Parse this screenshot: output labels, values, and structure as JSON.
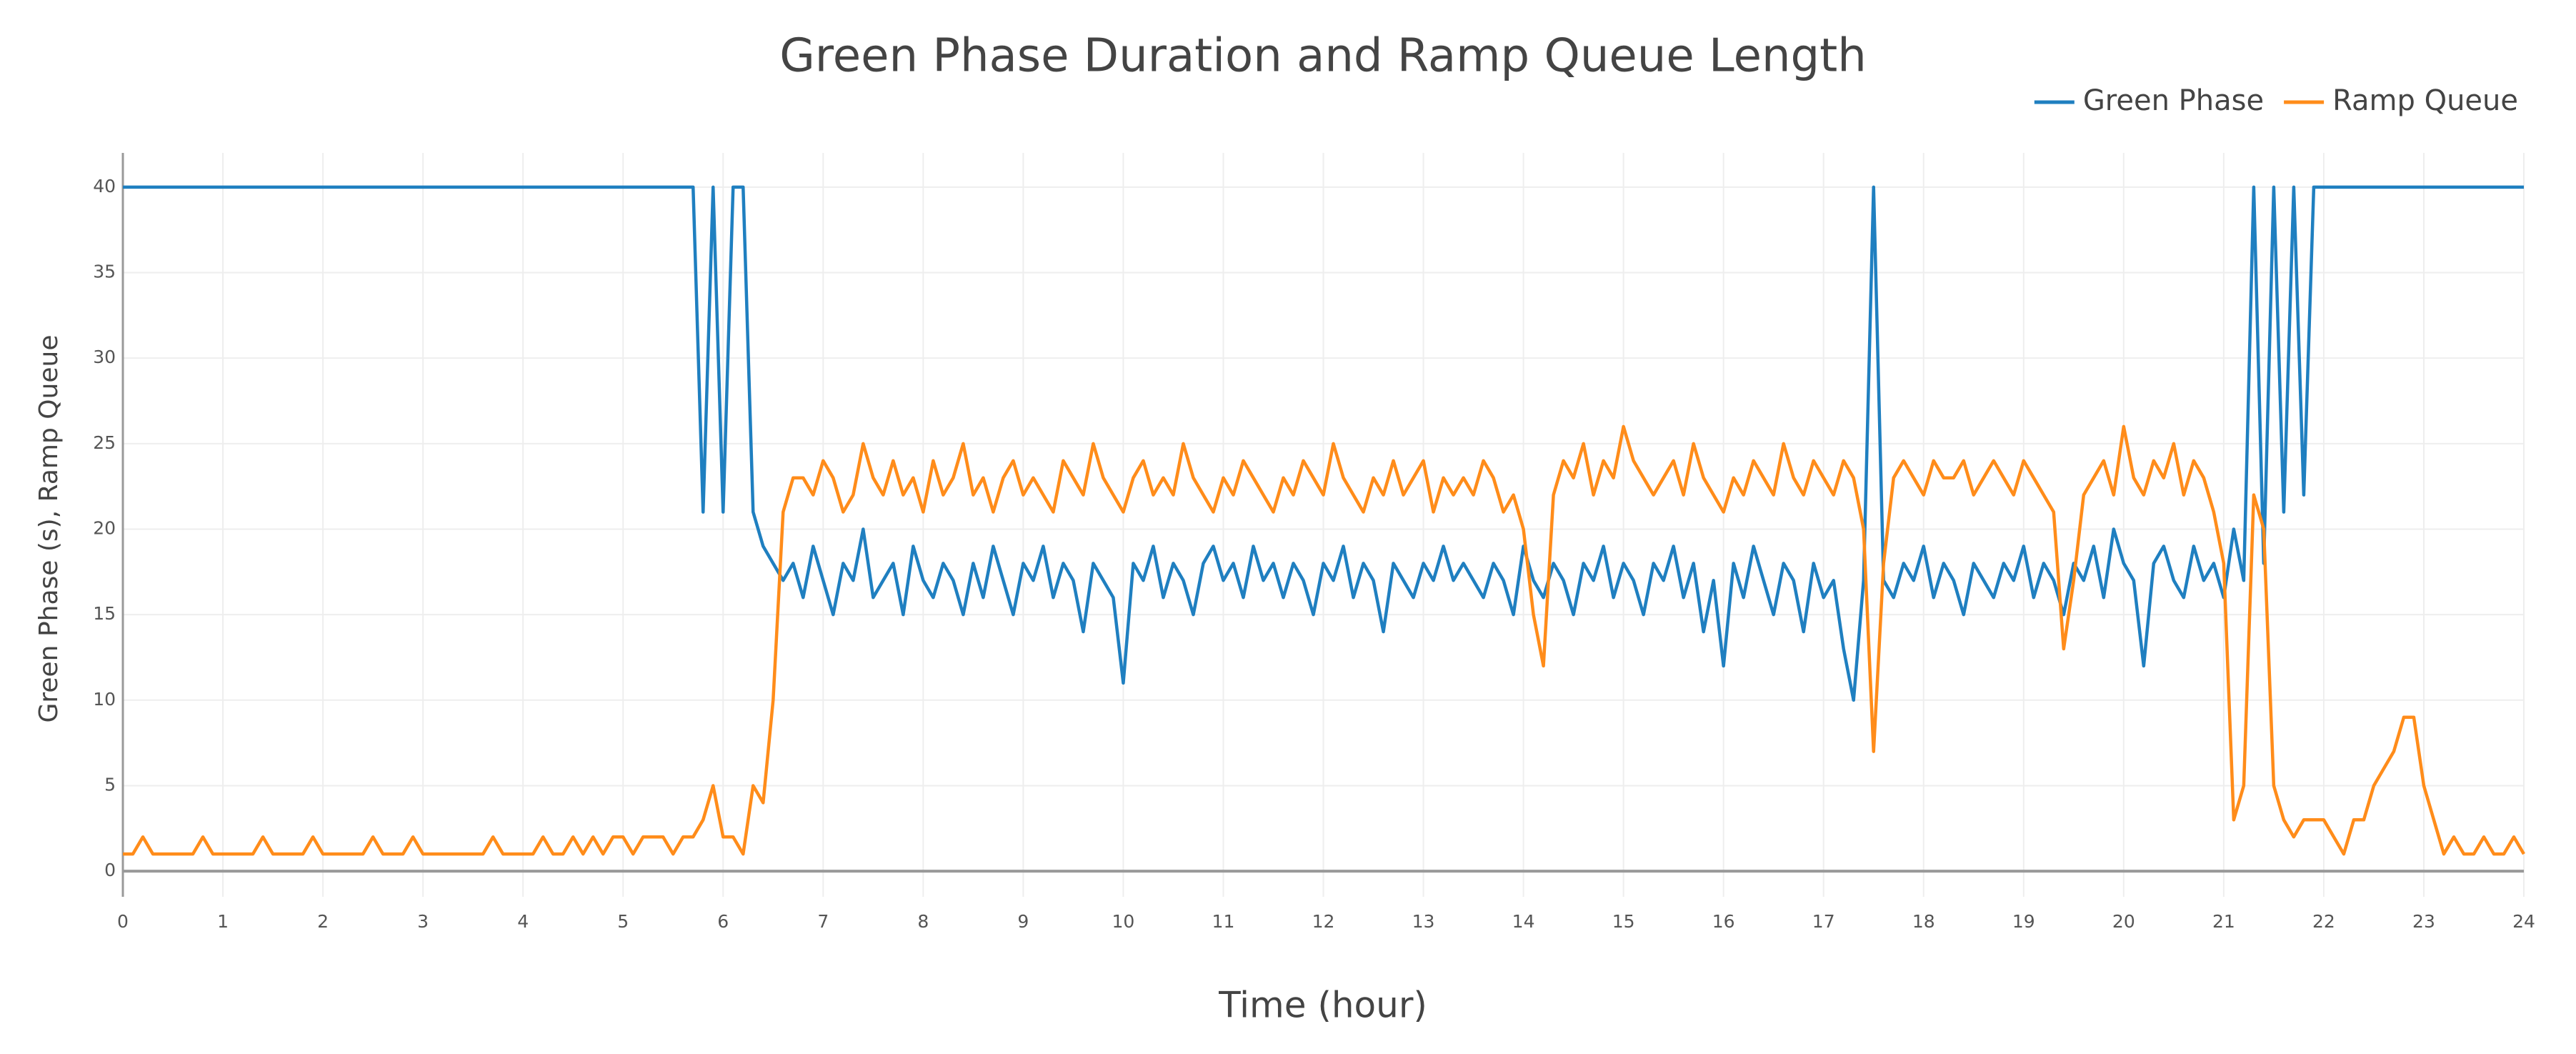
{
  "chart_data": {
    "type": "line",
    "title": "Green Phase Duration and Ramp Queue Length",
    "x_label": "Time (hour)",
    "y_label": "Green Phase (s), Ramp Queue",
    "xlim": [
      0,
      24
    ],
    "ylim": [
      -1.5,
      42
    ],
    "xticks": [
      0,
      1,
      2,
      3,
      4,
      5,
      6,
      7,
      8,
      9,
      10,
      11,
      12,
      13,
      14,
      15,
      16,
      17,
      18,
      19,
      20,
      21,
      22,
      23,
      24
    ],
    "yticks": [
      0,
      5,
      10,
      15,
      20,
      25,
      30,
      35,
      40
    ],
    "grid": true,
    "legend": "top-right",
    "x": [
      0,
      0.1,
      0.2,
      0.3,
      0.4,
      0.5,
      0.6,
      0.7,
      0.8,
      0.9,
      1,
      1.1,
      1.2,
      1.3,
      1.4,
      1.5,
      1.6,
      1.7,
      1.8,
      1.9,
      2,
      2.1,
      2.2,
      2.3,
      2.4,
      2.5,
      2.6,
      2.7,
      2.8,
      2.9,
      3,
      3.1,
      3.2,
      3.3,
      3.4,
      3.5,
      3.6,
      3.7,
      3.8,
      3.9,
      4,
      4.1,
      4.2,
      4.3,
      4.4,
      4.5,
      4.6,
      4.7,
      4.8,
      4.9,
      5,
      5.1,
      5.2,
      5.3,
      5.4,
      5.5,
      5.6,
      5.7,
      5.8,
      5.9,
      6,
      6.1,
      6.2,
      6.3,
      6.4,
      6.5,
      6.6,
      6.7,
      6.8,
      6.9,
      7,
      7.1,
      7.2,
      7.3,
      7.4,
      7.5,
      7.6,
      7.7,
      7.8,
      7.9,
      8,
      8.1,
      8.2,
      8.3,
      8.4,
      8.5,
      8.6,
      8.7,
      8.8,
      8.9,
      9,
      9.1,
      9.2,
      9.3,
      9.4,
      9.5,
      9.6,
      9.7,
      9.8,
      9.9,
      10,
      10.1,
      10.2,
      10.3,
      10.4,
      10.5,
      10.6,
      10.7,
      10.8,
      10.9,
      11,
      11.1,
      11.2,
      11.3,
      11.4,
      11.5,
      11.6,
      11.7,
      11.8,
      11.9,
      12,
      12.1,
      12.2,
      12.3,
      12.4,
      12.5,
      12.6,
      12.7,
      12.8,
      12.9,
      13,
      13.1,
      13.2,
      13.3,
      13.4,
      13.5,
      13.6,
      13.7,
      13.8,
      13.9,
      14,
      14.1,
      14.2,
      14.3,
      14.4,
      14.5,
      14.6,
      14.7,
      14.8,
      14.9,
      15,
      15.1,
      15.2,
      15.3,
      15.4,
      15.5,
      15.6,
      15.7,
      15.8,
      15.9,
      16,
      16.1,
      16.2,
      16.3,
      16.4,
      16.5,
      16.6,
      16.7,
      16.8,
      16.9,
      17,
      17.1,
      17.2,
      17.3,
      17.4,
      17.5,
      17.6,
      17.7,
      17.8,
      17.9,
      18,
      18.1,
      18.2,
      18.3,
      18.4,
      18.5,
      18.6,
      18.7,
      18.8,
      18.9,
      19,
      19.1,
      19.2,
      19.3,
      19.4,
      19.5,
      19.6,
      19.7,
      19.8,
      19.9,
      20,
      20.1,
      20.2,
      20.3,
      20.4,
      20.5,
      20.6,
      20.7,
      20.8,
      20.9,
      21,
      21.1,
      21.2,
      21.3,
      21.4,
      21.5,
      21.6,
      21.7,
      21.8,
      21.9,
      22,
      22.1,
      22.2,
      22.3,
      22.4,
      22.5,
      22.6,
      22.7,
      22.8,
      22.9,
      23,
      23.1,
      23.2,
      23.3,
      23.4,
      23.5,
      23.6,
      23.7,
      23.8,
      23.9,
      24
    ],
    "series": [
      {
        "name": "Green Phase",
        "color": "#1f7fc0",
        "values": [
          40,
          40,
          40,
          40,
          40,
          40,
          40,
          40,
          40,
          40,
          40,
          40,
          40,
          40,
          40,
          40,
          40,
          40,
          40,
          40,
          40,
          40,
          40,
          40,
          40,
          40,
          40,
          40,
          40,
          40,
          40,
          40,
          40,
          40,
          40,
          40,
          40,
          40,
          40,
          40,
          40,
          40,
          40,
          40,
          40,
          40,
          40,
          40,
          40,
          40,
          40,
          40,
          40,
          40,
          40,
          40,
          40,
          40,
          21,
          40,
          21,
          40,
          40,
          21,
          19,
          18,
          17,
          18,
          16,
          19,
          17,
          15,
          18,
          17,
          20,
          16,
          17,
          18,
          15,
          19,
          17,
          16,
          18,
          17,
          15,
          18,
          16,
          19,
          17,
          15,
          18,
          17,
          19,
          16,
          18,
          17,
          14,
          18,
          17,
          16,
          11,
          18,
          17,
          19,
          16,
          18,
          17,
          15,
          18,
          19,
          17,
          18,
          16,
          19,
          17,
          18,
          16,
          18,
          17,
          15,
          18,
          17,
          19,
          16,
          18,
          17,
          14,
          18,
          17,
          16,
          18,
          17,
          19,
          17,
          18,
          17,
          16,
          18,
          17,
          15,
          19,
          17,
          16,
          18,
          17,
          15,
          18,
          17,
          19,
          16,
          18,
          17,
          15,
          18,
          17,
          19,
          16,
          18,
          14,
          17,
          12,
          18,
          16,
          19,
          17,
          15,
          18,
          17,
          14,
          18,
          16,
          17,
          13,
          10,
          17,
          40,
          17,
          16,
          18,
          17,
          19,
          16,
          18,
          17,
          15,
          18,
          17,
          16,
          18,
          17,
          19,
          16,
          18,
          17,
          15,
          18,
          17,
          19,
          16,
          20,
          18,
          17,
          12,
          18,
          19,
          17,
          16,
          19,
          17,
          18,
          16,
          20,
          17,
          40,
          18,
          40,
          21,
          40,
          22,
          40,
          40,
          40,
          40,
          40,
          40,
          40,
          40,
          40,
          40,
          40,
          40,
          40,
          40,
          40,
          40,
          40,
          40,
          40,
          40,
          40,
          40
        ]
      },
      {
        "name": "Ramp Queue",
        "color": "#ff8c1a",
        "values": [
          1,
          1,
          2,
          1,
          1,
          1,
          1,
          1,
          2,
          1,
          1,
          1,
          1,
          1,
          2,
          1,
          1,
          1,
          1,
          2,
          1,
          1,
          1,
          1,
          1,
          2,
          1,
          1,
          1,
          2,
          1,
          1,
          1,
          1,
          1,
          1,
          1,
          2,
          1,
          1,
          1,
          1,
          2,
          1,
          1,
          2,
          1,
          2,
          1,
          2,
          2,
          1,
          2,
          2,
          2,
          1,
          2,
          2,
          3,
          5,
          2,
          2,
          1,
          5,
          4,
          10,
          21,
          23,
          23,
          22,
          24,
          23,
          21,
          22,
          25,
          23,
          22,
          24,
          22,
          23,
          21,
          24,
          22,
          23,
          25,
          22,
          23,
          21,
          23,
          24,
          22,
          23,
          22,
          21,
          24,
          23,
          22,
          25,
          23,
          22,
          21,
          23,
          24,
          22,
          23,
          22,
          25,
          23,
          22,
          21,
          23,
          22,
          24,
          23,
          22,
          21,
          23,
          22,
          24,
          23,
          22,
          25,
          23,
          22,
          21,
          23,
          22,
          24,
          22,
          23,
          24,
          21,
          23,
          22,
          23,
          22,
          24,
          23,
          21,
          22,
          20,
          15,
          12,
          22,
          24,
          23,
          25,
          22,
          24,
          23,
          26,
          24,
          23,
          22,
          23,
          24,
          22,
          25,
          23,
          22,
          21,
          23,
          22,
          24,
          23,
          22,
          25,
          23,
          22,
          24,
          23,
          22,
          24,
          23,
          20,
          7,
          18,
          23,
          24,
          23,
          22,
          24,
          23,
          23,
          24,
          22,
          23,
          24,
          23,
          22,
          24,
          23,
          22,
          21,
          13,
          17,
          22,
          23,
          24,
          22,
          26,
          23,
          22,
          24,
          23,
          25,
          22,
          24,
          23,
          21,
          18,
          3,
          5,
          22,
          20,
          5,
          3,
          2,
          3,
          3,
          3,
          2,
          1,
          3,
          3,
          5,
          6,
          7,
          9,
          9,
          5,
          3,
          1,
          2,
          1,
          1,
          2,
          1,
          1,
          2,
          1
        ]
      }
    ]
  }
}
